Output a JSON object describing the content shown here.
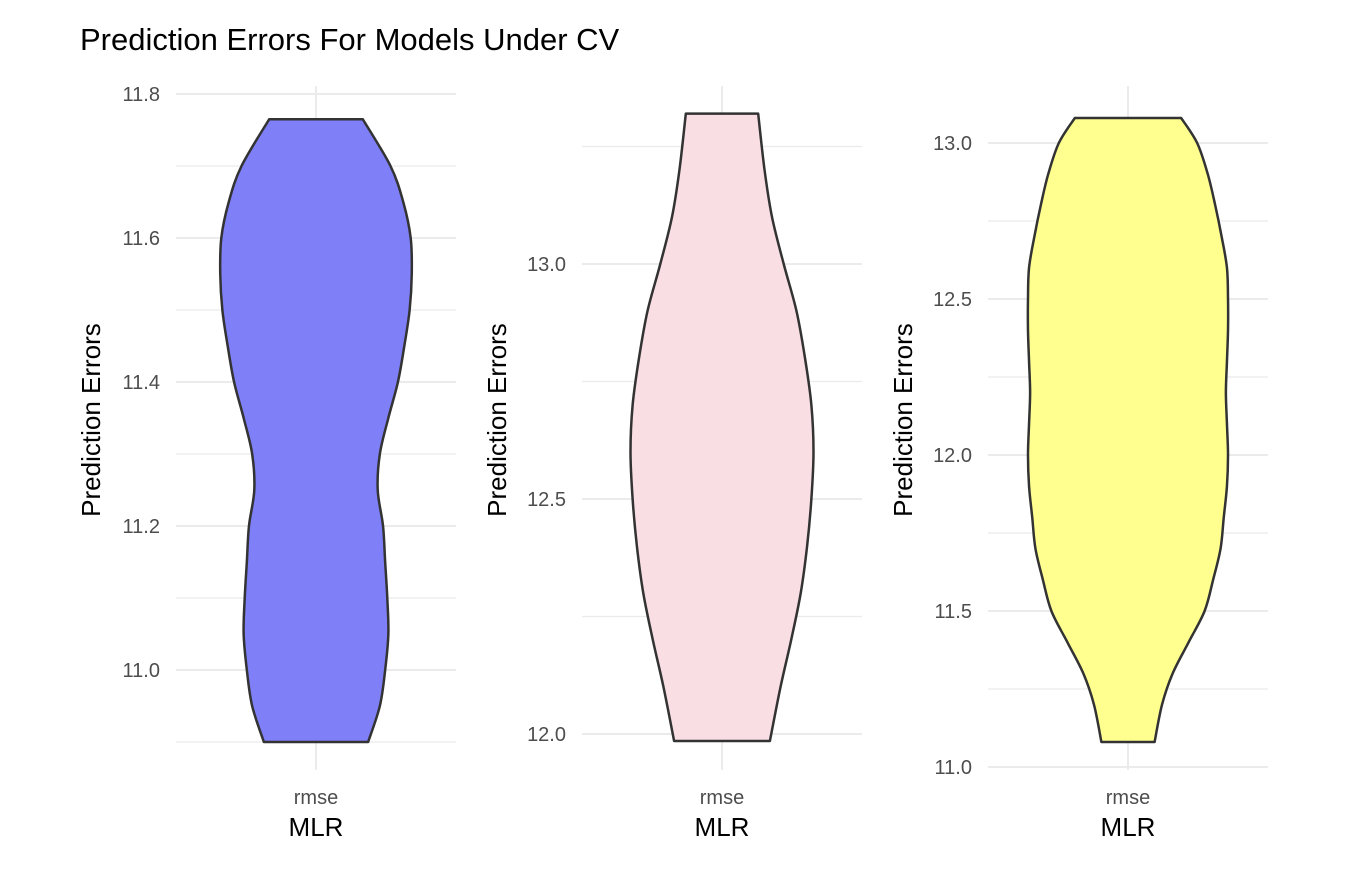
{
  "figure_title": "Prediction Errors For Models Under CV",
  "chart_data": [
    {
      "type": "violin",
      "category": "rmse",
      "xlabel": "MLR",
      "ylabel": "Prediction Errors",
      "fill": "#7f7ff7",
      "ylim": [
        10.89,
        11.8
      ],
      "yticks": [
        11.0,
        11.2,
        11.4,
        11.6,
        11.8
      ],
      "ytick_labels": [
        "11.0",
        "11.2",
        "11.4",
        "11.6",
        "11.8"
      ],
      "min": 10.9,
      "max": 11.765,
      "density_profile": [
        [
          10.9,
          0.49
        ],
        [
          10.95,
          0.6
        ],
        [
          11.0,
          0.65
        ],
        [
          11.05,
          0.68
        ],
        [
          11.1,
          0.67
        ],
        [
          11.15,
          0.65
        ],
        [
          11.2,
          0.63
        ],
        [
          11.25,
          0.58
        ],
        [
          11.3,
          0.6
        ],
        [
          11.35,
          0.68
        ],
        [
          11.4,
          0.77
        ],
        [
          11.45,
          0.83
        ],
        [
          11.5,
          0.88
        ],
        [
          11.55,
          0.9
        ],
        [
          11.6,
          0.89
        ],
        [
          11.65,
          0.82
        ],
        [
          11.7,
          0.7
        ],
        [
          11.765,
          0.44
        ]
      ]
    },
    {
      "type": "violin",
      "category": "rmse",
      "xlabel": "MLR",
      "ylabel": "Prediction Errors",
      "fill": "#f9dfe4",
      "ylim": [
        11.95,
        13.35
      ],
      "yticks": [
        12.0,
        12.5,
        13.0
      ],
      "ytick_labels": [
        "12.0",
        "12.5",
        "13.0"
      ],
      "min": 11.985,
      "max": 13.32,
      "density_profile": [
        [
          11.985,
          0.45
        ],
        [
          12.1,
          0.55
        ],
        [
          12.2,
          0.65
        ],
        [
          12.3,
          0.74
        ],
        [
          12.4,
          0.8
        ],
        [
          12.5,
          0.84
        ],
        [
          12.6,
          0.86
        ],
        [
          12.7,
          0.84
        ],
        [
          12.8,
          0.78
        ],
        [
          12.9,
          0.7
        ],
        [
          13.0,
          0.58
        ],
        [
          13.1,
          0.47
        ],
        [
          13.2,
          0.4
        ],
        [
          13.32,
          0.34
        ]
      ]
    },
    {
      "type": "violin",
      "category": "rmse",
      "xlabel": "MLR",
      "ylabel": "Prediction Errors",
      "fill": "#ffff8f",
      "ylim": [
        10.95,
        13.2
      ],
      "yticks": [
        11.0,
        11.5,
        12.0,
        12.5,
        13.0
      ],
      "ytick_labels": [
        "11.0",
        "11.5",
        "12.0",
        "12.5",
        "13.0"
      ],
      "min": 11.08,
      "max": 13.08,
      "density_profile": [
        [
          11.08,
          0.25
        ],
        [
          11.2,
          0.32
        ],
        [
          11.3,
          0.42
        ],
        [
          11.4,
          0.57
        ],
        [
          11.5,
          0.72
        ],
        [
          11.6,
          0.8
        ],
        [
          11.7,
          0.87
        ],
        [
          11.8,
          0.9
        ],
        [
          11.9,
          0.93
        ],
        [
          12.0,
          0.94
        ],
        [
          12.1,
          0.93
        ],
        [
          12.2,
          0.92
        ],
        [
          12.3,
          0.93
        ],
        [
          12.4,
          0.94
        ],
        [
          12.5,
          0.94
        ],
        [
          12.6,
          0.93
        ],
        [
          12.7,
          0.88
        ],
        [
          12.8,
          0.82
        ],
        [
          12.9,
          0.75
        ],
        [
          13.0,
          0.65
        ],
        [
          13.08,
          0.5
        ]
      ]
    }
  ]
}
